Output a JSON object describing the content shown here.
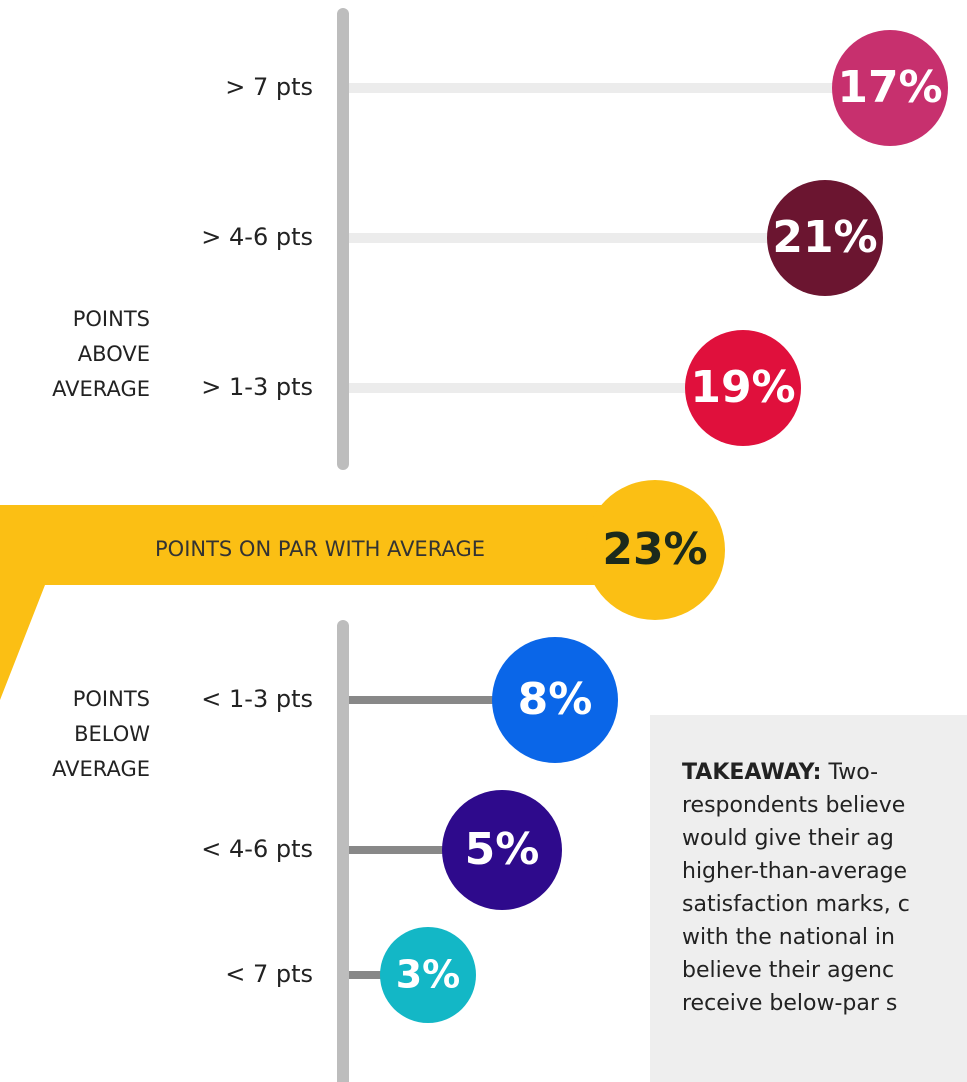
{
  "chart_data": {
    "type": "lollipop",
    "categories": [
      "> 7 pts",
      "> 4-6 pts",
      "> 1-3 pts",
      "POINTS ON PAR WITH AVERAGE",
      "< 1-3 pts",
      "< 4-6 pts",
      "< 7 pts"
    ],
    "values": [
      17,
      21,
      19,
      23,
      8,
      5,
      3
    ],
    "value_labels": [
      "17%",
      "21%",
      "19%",
      "23%",
      "8%",
      "5%",
      "3%"
    ],
    "colors": [
      "#c7306e",
      "#6b1530",
      "#e0103c",
      "#fbbf14",
      "#0a66e8",
      "#2e0a8c",
      "#13b7c6"
    ],
    "group_labels": [
      [
        "POINTS",
        "ABOVE",
        "AVERAGE"
      ],
      [
        "POINTS",
        "BELOW",
        "AVERAGE"
      ]
    ],
    "takeaway": {
      "label": "TAKEAWAY:",
      "lines": [
        " Two-",
        "respondents believe",
        "would give their ag",
        "higher-than-average",
        "satisfaction marks, c",
        "with the national in",
        "believe their agenc",
        "receive below-par s"
      ]
    }
  }
}
